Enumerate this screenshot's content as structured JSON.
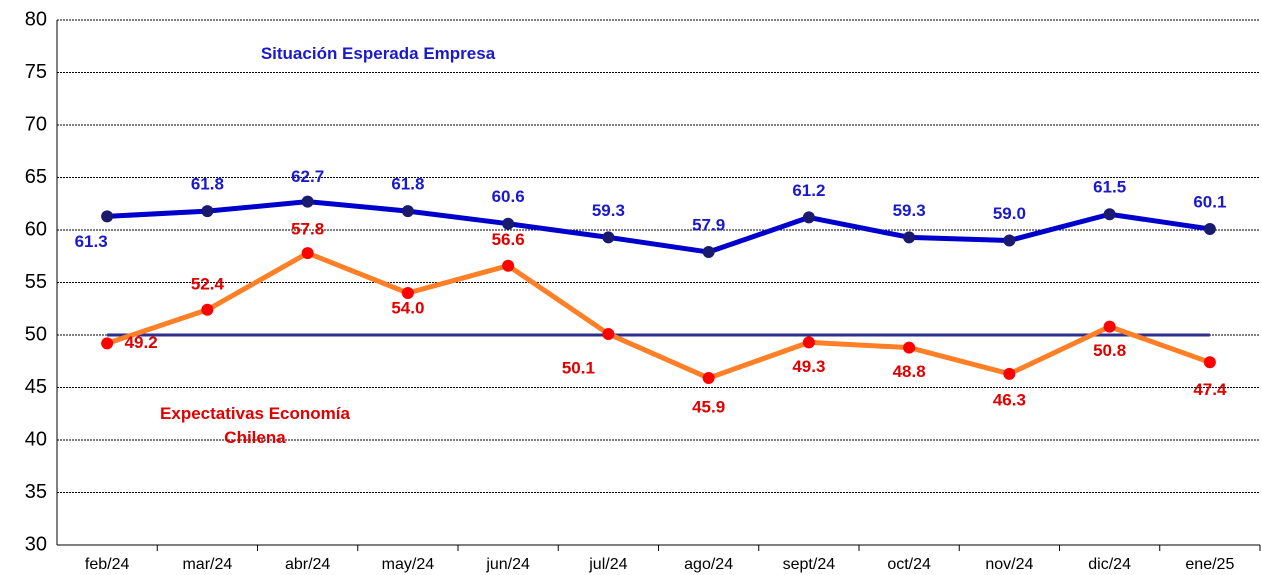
{
  "chart_data": {
    "type": "line",
    "categories": [
      "feb/24",
      "mar/24",
      "abr/24",
      "may/24",
      "jun/24",
      "jul/24",
      "ago/24",
      "sept/24",
      "oct/24",
      "nov/24",
      "dic/24",
      "ene/25"
    ],
    "series": [
      {
        "name": "Situación Esperada Empresa",
        "color": "#0000cc",
        "marker_color": "#1a1a6e",
        "label_color": "#1a1acc",
        "values": [
          61.3,
          61.8,
          62.7,
          61.8,
          60.6,
          59.3,
          57.9,
          61.2,
          59.3,
          59.0,
          61.5,
          60.1
        ],
        "value_labels": [
          "61.3",
          "61.8",
          "62.7",
          "61.8",
          "60.6",
          "59.3",
          "57.9",
          "61.2",
          "59.3",
          "59.0",
          "61.5",
          "60.1"
        ]
      },
      {
        "name": "Expectativas Economía Chilena",
        "color": "#ff7f27",
        "marker_color": "#ff0000",
        "label_color": "#e00000",
        "values": [
          49.2,
          52.4,
          57.8,
          54.0,
          56.6,
          50.1,
          45.9,
          49.3,
          48.8,
          46.3,
          50.8,
          47.4
        ],
        "value_labels": [
          "49.2",
          "52.4",
          "57.8",
          "54.0",
          "56.6",
          "50.1",
          "45.9",
          "49.3",
          "48.8",
          "46.3",
          "50.8",
          "47.4"
        ]
      }
    ],
    "reference_line": 50,
    "reference_color": "#2e2e8c",
    "ylim": [
      30,
      80
    ],
    "yticks": [
      30,
      35,
      40,
      45,
      50,
      55,
      60,
      65,
      70,
      75,
      80
    ],
    "grid": true
  }
}
